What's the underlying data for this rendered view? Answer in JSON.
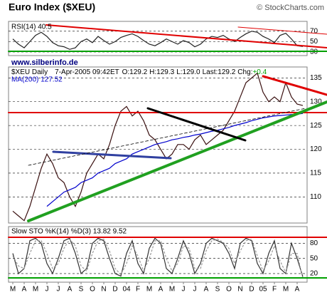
{
  "title": "Euro Index ($XEU)",
  "credit": "© StockCharts.com",
  "chart_data": [
    {
      "type": "line",
      "legend": "RSI(14) 40.5",
      "ylim": [
        23,
        89
      ],
      "yticks": [
        30,
        50,
        70
      ],
      "series": [
        {
          "color": "#222222",
          "values": [
            55,
            45,
            38,
            50,
            62,
            68,
            60,
            48,
            42,
            40,
            35,
            38,
            50,
            55,
            48,
            60,
            52,
            45,
            50,
            58,
            62,
            65,
            60,
            52,
            45,
            42,
            48,
            55,
            50,
            45,
            52,
            48,
            40,
            45,
            55,
            60,
            58,
            62,
            55,
            50,
            58,
            65,
            70,
            68,
            60,
            55,
            48,
            62,
            66,
            55,
            42,
            40.5
          ]
        }
      ]
    },
    {
      "type": "line",
      "watermark": "www.silberinfo.de",
      "header": [
        "$XEU Daily",
        "7-Apr-2005 09:42ET",
        "O:129.2",
        "H:129.3",
        "L:129.0",
        "Last:129.2",
        "Chg:",
        "+0.4"
      ],
      "ylim": [
        104.5,
        137.3
      ],
      "yticks": [
        110,
        115,
        120,
        125,
        130,
        135
      ],
      "series": [
        {
          "color": "#3a1010",
          "values": [
            107,
            106,
            105,
            108,
            112,
            116,
            119,
            117,
            114,
            113,
            110,
            108,
            111,
            115,
            117,
            119,
            118,
            121,
            125,
            128,
            129,
            127,
            128,
            126,
            123,
            122,
            120,
            118,
            119,
            121,
            121,
            120,
            122,
            123,
            121,
            122,
            123,
            124,
            126,
            128,
            131,
            134,
            135,
            136,
            132,
            130,
            131,
            130,
            134,
            131,
            129.5,
            129.2
          ]
        },
        {
          "name": "MA(200) 127.52",
          "color": "#0000cc",
          "values": [
            null,
            null,
            null,
            null,
            null,
            null,
            108,
            109,
            110,
            111,
            111.5,
            112,
            113,
            113.5,
            114,
            115,
            115.5,
            116,
            117,
            117.5,
            118,
            119,
            119.5,
            120,
            120.5,
            121,
            121.3,
            121.6,
            122,
            122.2,
            122.5,
            122.7,
            123,
            123.2,
            123.5,
            123.8,
            124,
            124.3,
            124.6,
            125,
            125.3,
            125.6,
            126,
            126.3,
            126.6,
            126.8,
            127,
            127.1,
            127.2,
            127.3,
            127.4,
            127.52
          ]
        }
      ]
    },
    {
      "type": "line",
      "legend": "Slow STO %K(14) %D(3) 13.82 9.52",
      "ylim": [
        3,
        113
      ],
      "yticks": [
        20,
        50,
        80
      ],
      "categories": [
        "M",
        null,
        "A",
        null,
        "M",
        null,
        "J",
        null,
        "J",
        null,
        "A",
        null,
        "S",
        null,
        "O",
        null,
        "N",
        null,
        "D",
        null,
        "04",
        null,
        "F",
        null,
        "M",
        null,
        "A",
        null,
        "M",
        null,
        "J",
        null,
        "J",
        null,
        "A",
        null,
        "S",
        null,
        "O",
        null,
        "N",
        null,
        "D",
        null,
        "05",
        null,
        "F",
        null,
        "M",
        null,
        "A",
        null
      ],
      "series": [
        {
          "color": "#333333",
          "values": [
            60,
            20,
            30,
            85,
            90,
            80,
            40,
            20,
            50,
            85,
            90,
            60,
            20,
            30,
            80,
            90,
            85,
            50,
            20,
            15,
            60,
            85,
            40,
            20,
            70,
            90,
            80,
            30,
            20,
            50,
            85,
            60,
            20,
            40,
            80,
            90,
            85,
            80,
            60,
            30,
            80,
            90,
            85,
            40,
            20,
            60,
            85,
            30,
            20,
            80,
            50,
            13.82
          ]
        },
        {
          "color": "#999999",
          "dash": true,
          "values": [
            55,
            35,
            30,
            60,
            85,
            85,
            60,
            30,
            40,
            70,
            88,
            75,
            35,
            25,
            60,
            85,
            88,
            65,
            30,
            18,
            40,
            75,
            55,
            25,
            50,
            85,
            85,
            50,
            25,
            40,
            75,
            70,
            30,
            30,
            65,
            85,
            88,
            82,
            70,
            40,
            65,
            85,
            88,
            55,
            25,
            45,
            75,
            45,
            22,
            60,
            60,
            9.52
          ]
        }
      ]
    }
  ]
}
